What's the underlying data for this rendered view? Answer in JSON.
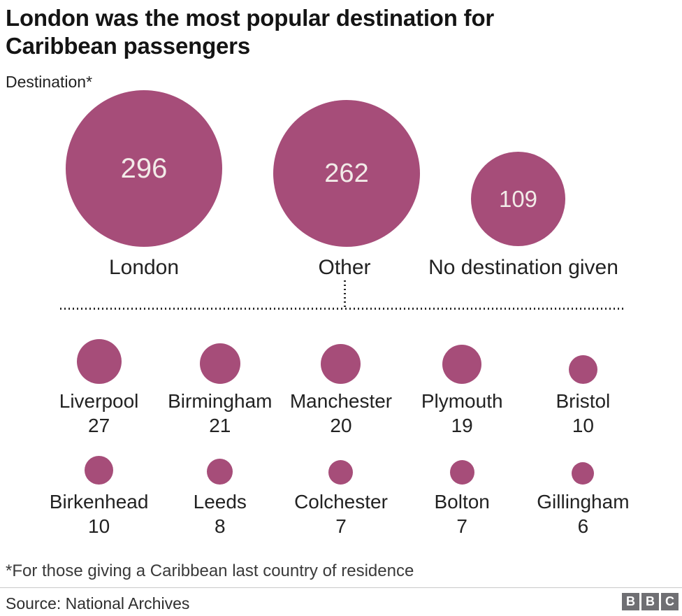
{
  "header": {
    "title": "London was the most popular destination for Caribbean passengers",
    "subtitle": "Destination*"
  },
  "colors": {
    "bubble_fill": "#a64d79",
    "bubble_value_text": "#f2ebe8",
    "title_text": "#141414",
    "dotted_line": "#2b2b2b"
  },
  "chart_data": {
    "type": "bubble",
    "title": "London was the most popular destination for Caribbean passengers",
    "subtitle": "Destination*",
    "sizing": "circle area proportional to value, circles bottom-aligned",
    "main": [
      {
        "label": "London",
        "value": 296
      },
      {
        "label": "Other",
        "value": 262
      },
      {
        "label": "No destination given",
        "value": 109
      }
    ],
    "other_breakdown": [
      {
        "label": "Liverpool",
        "value": 27
      },
      {
        "label": "Birmingham",
        "value": 21
      },
      {
        "label": "Manchester",
        "value": 20
      },
      {
        "label": "Plymouth",
        "value": 19
      },
      {
        "label": "Bristol",
        "value": 10
      },
      {
        "label": "Birkenhead",
        "value": 10
      },
      {
        "label": "Leeds",
        "value": 8
      },
      {
        "label": "Colchester",
        "value": 7
      },
      {
        "label": "Bolton",
        "value": 7
      },
      {
        "label": "Gillingham",
        "value": 6
      }
    ]
  },
  "footer": {
    "footnote": "*For those giving a Caribbean last country of residence",
    "source": "Source: National Archives",
    "logo_letters": [
      "B",
      "B",
      "C"
    ]
  }
}
